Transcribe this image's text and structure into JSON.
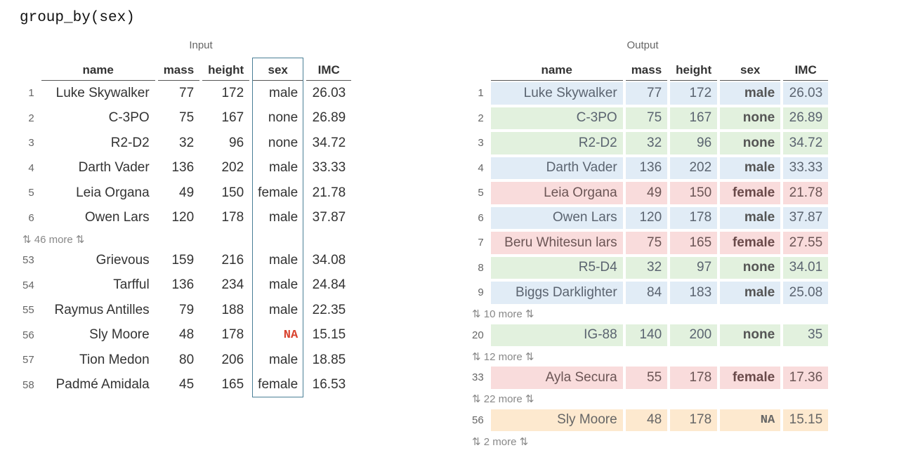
{
  "title": "group_by(sex)",
  "input": {
    "caption": "Input",
    "columns": [
      "name",
      "mass",
      "height",
      "sex",
      "IMC"
    ],
    "rows_top": [
      {
        "idx": "1",
        "name": "Luke Skywalker",
        "mass": "77",
        "height": "172",
        "sex": "male",
        "imc": "26.03"
      },
      {
        "idx": "2",
        "name": "C-3PO",
        "mass": "75",
        "height": "167",
        "sex": "none",
        "imc": "26.89"
      },
      {
        "idx": "3",
        "name": "R2-D2",
        "mass": "32",
        "height": "96",
        "sex": "none",
        "imc": "34.72"
      },
      {
        "idx": "4",
        "name": "Darth Vader",
        "mass": "136",
        "height": "202",
        "sex": "male",
        "imc": "33.33"
      },
      {
        "idx": "5",
        "name": "Leia Organa",
        "mass": "49",
        "height": "150",
        "sex": "female",
        "imc": "21.78"
      },
      {
        "idx": "6",
        "name": "Owen Lars",
        "mass": "120",
        "height": "178",
        "sex": "male",
        "imc": "37.87"
      }
    ],
    "gap": "⇅ 46 more ⇅",
    "rows_bottom": [
      {
        "idx": "53",
        "name": "Grievous",
        "mass": "159",
        "height": "216",
        "sex": "male",
        "imc": "34.08"
      },
      {
        "idx": "54",
        "name": "Tarfful",
        "mass": "136",
        "height": "234",
        "sex": "male",
        "imc": "24.84"
      },
      {
        "idx": "55",
        "name": "Raymus Antilles",
        "mass": "79",
        "height": "188",
        "sex": "male",
        "imc": "22.35"
      },
      {
        "idx": "56",
        "name": "Sly Moore",
        "mass": "48",
        "height": "178",
        "sex": "NA",
        "imc": "15.15"
      },
      {
        "idx": "57",
        "name": "Tion Medon",
        "mass": "80",
        "height": "206",
        "sex": "male",
        "imc": "18.85"
      },
      {
        "idx": "58",
        "name": "Padmé Amidala",
        "mass": "45",
        "height": "165",
        "sex": "female",
        "imc": "16.53"
      }
    ]
  },
  "output": {
    "caption": "Output",
    "columns": [
      "name",
      "mass",
      "height",
      "sex",
      "IMC"
    ],
    "colors": {
      "male": "#e1ecf6",
      "none": "#e2f1de",
      "female": "#f9dcdc",
      "NA": "#fde9cf"
    },
    "blocks": [
      {
        "type": "rows",
        "rows": [
          {
            "idx": "1",
            "name": "Luke Skywalker",
            "mass": "77",
            "height": "172",
            "sex": "male",
            "imc": "26.03"
          },
          {
            "idx": "2",
            "name": "C-3PO",
            "mass": "75",
            "height": "167",
            "sex": "none",
            "imc": "26.89"
          },
          {
            "idx": "3",
            "name": "R2-D2",
            "mass": "32",
            "height": "96",
            "sex": "none",
            "imc": "34.72"
          },
          {
            "idx": "4",
            "name": "Darth Vader",
            "mass": "136",
            "height": "202",
            "sex": "male",
            "imc": "33.33"
          },
          {
            "idx": "5",
            "name": "Leia Organa",
            "mass": "49",
            "height": "150",
            "sex": "female",
            "imc": "21.78"
          },
          {
            "idx": "6",
            "name": "Owen Lars",
            "mass": "120",
            "height": "178",
            "sex": "male",
            "imc": "37.87"
          },
          {
            "idx": "7",
            "name": "Beru Whitesun lars",
            "mass": "75",
            "height": "165",
            "sex": "female",
            "imc": "27.55"
          },
          {
            "idx": "8",
            "name": "R5-D4",
            "mass": "32",
            "height": "97",
            "sex": "none",
            "imc": "34.01"
          },
          {
            "idx": "9",
            "name": "Biggs Darklighter",
            "mass": "84",
            "height": "183",
            "sex": "male",
            "imc": "25.08"
          }
        ]
      },
      {
        "type": "gap",
        "text": "⇅ 10 more ⇅"
      },
      {
        "type": "rows",
        "rows": [
          {
            "idx": "20",
            "name": "IG-88",
            "mass": "140",
            "height": "200",
            "sex": "none",
            "imc": "35"
          }
        ]
      },
      {
        "type": "gap",
        "text": "⇅ 12 more ⇅"
      },
      {
        "type": "rows",
        "rows": [
          {
            "idx": "33",
            "name": "Ayla Secura",
            "mass": "55",
            "height": "178",
            "sex": "female",
            "imc": "17.36"
          }
        ]
      },
      {
        "type": "gap",
        "text": "⇅ 22 more ⇅"
      },
      {
        "type": "rows",
        "rows": [
          {
            "idx": "56",
            "name": "Sly Moore",
            "mass": "48",
            "height": "178",
            "sex": "NA",
            "imc": "15.15"
          }
        ]
      },
      {
        "type": "gap",
        "text": "⇅ 2 more ⇅"
      }
    ]
  }
}
